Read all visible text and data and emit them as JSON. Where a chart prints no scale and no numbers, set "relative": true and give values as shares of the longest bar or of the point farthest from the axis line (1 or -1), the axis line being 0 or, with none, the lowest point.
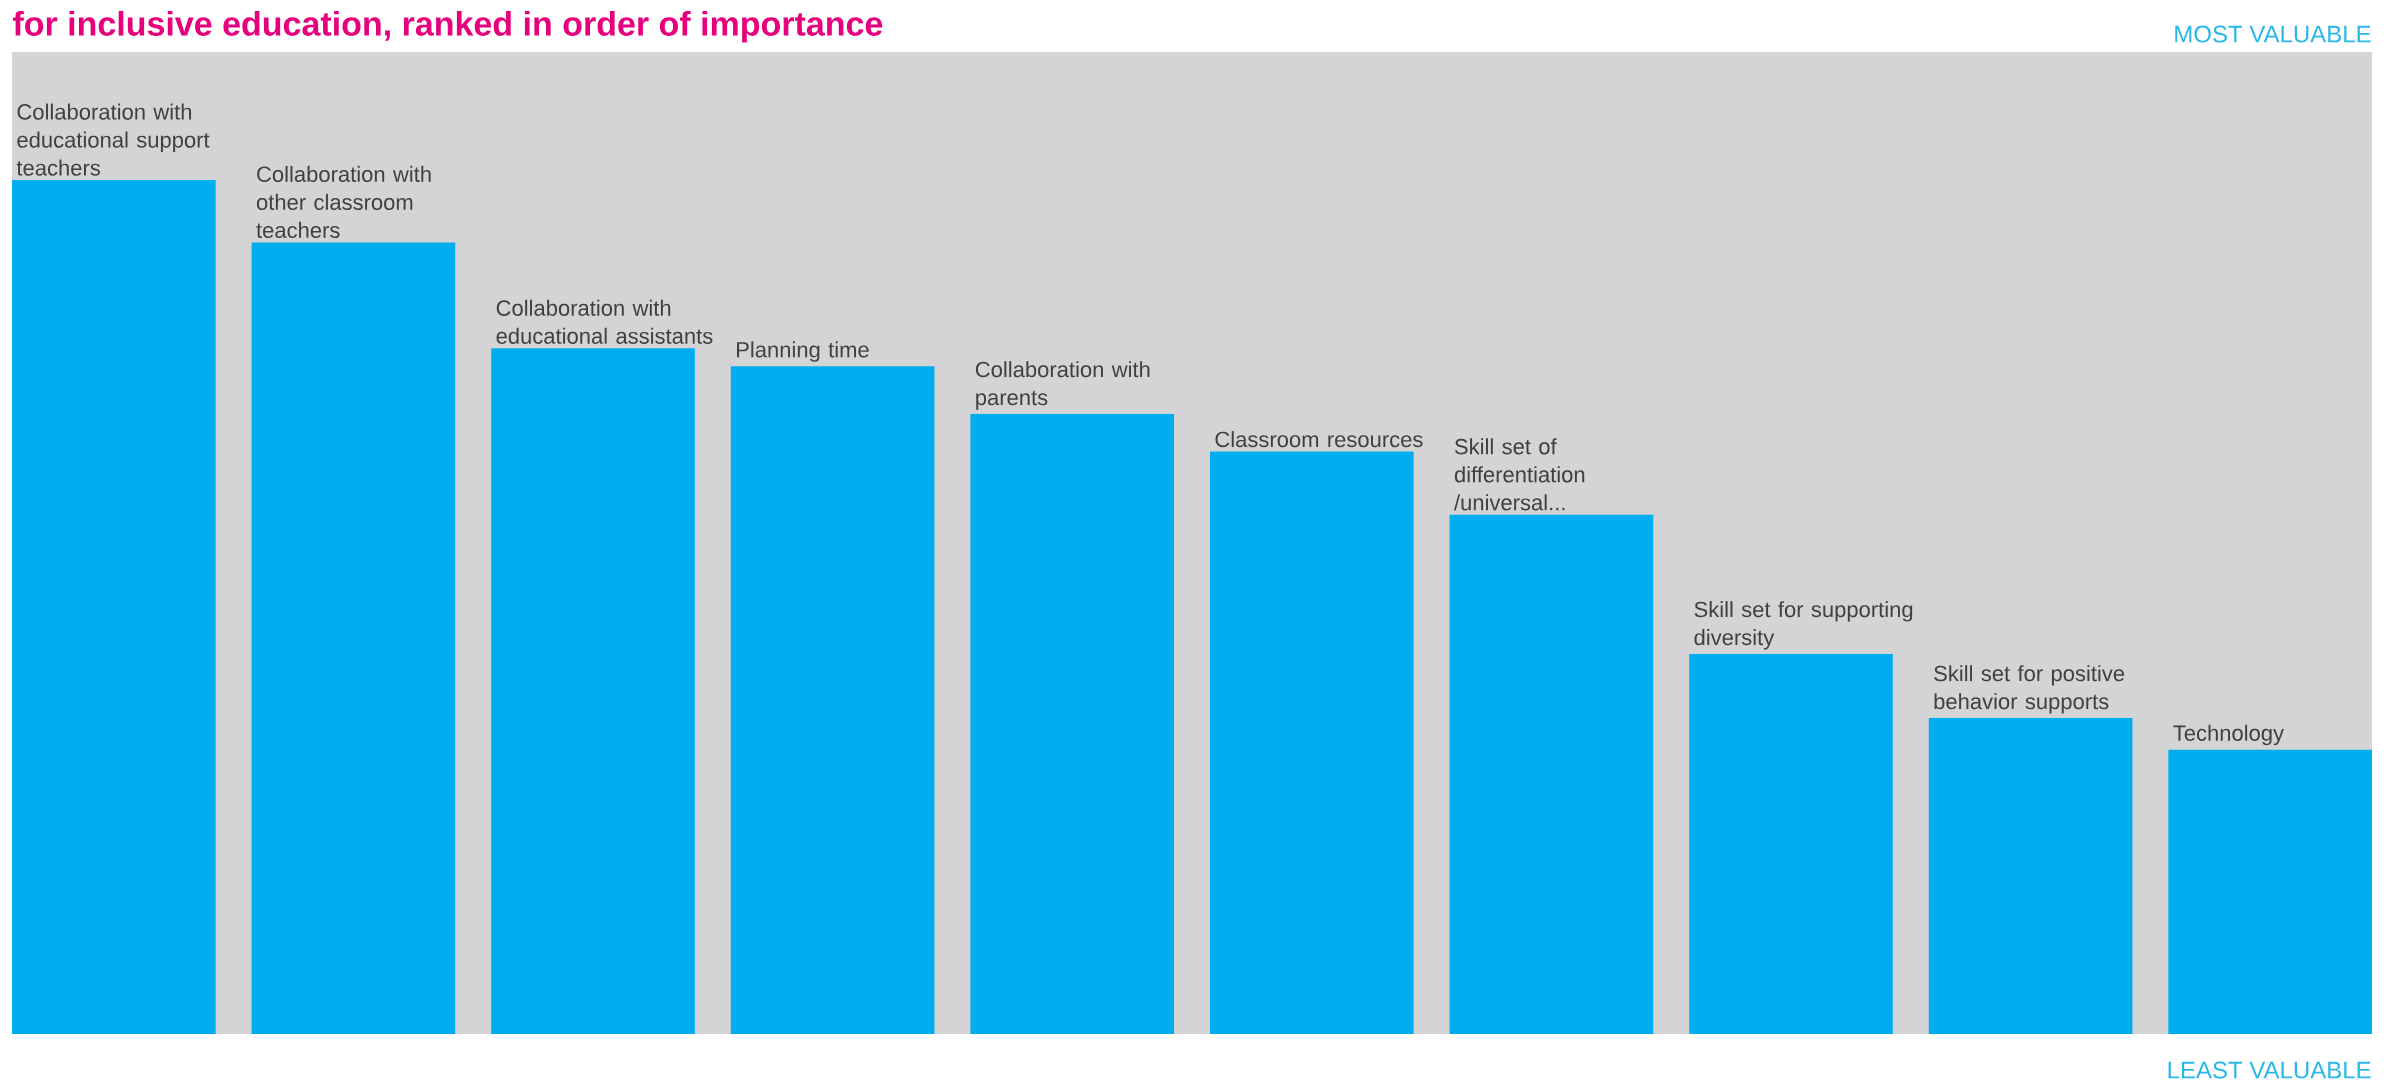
{
  "chart_data": {
    "type": "bar",
    "title": "for inclusive education, ranked in order of importance",
    "relative": true,
    "color": "#00aeef",
    "categories": [
      "Collaboration with educational support teachers",
      "Collaboration with other classroom teachers",
      "Collaboration with educational assistants",
      "Planning time",
      "Collaboration with parents",
      "Classroom resources",
      "Skill set of differentiation /universal...",
      "Skill set for supporting diversity",
      "Skill set for positive behavior supports",
      "Technology"
    ],
    "values": [
      1,
      0.927,
      0.803,
      0.782,
      0.726,
      0.682,
      0.608,
      0.445,
      0.37,
      0.333
    ],
    "annotations": [
      "MOST VALUABLE",
      "LEAST VALUABLE"
    ]
  }
}
